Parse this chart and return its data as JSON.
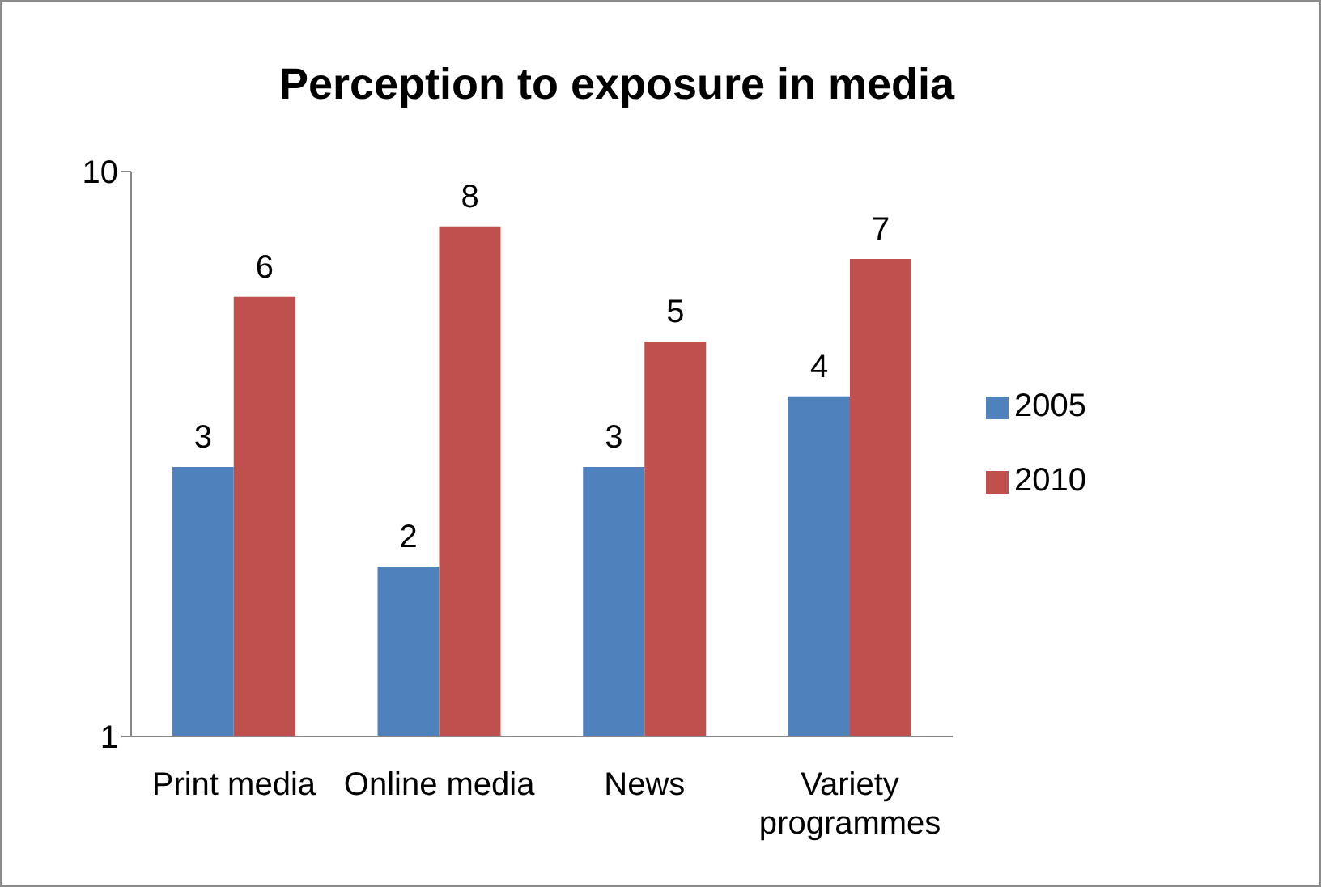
{
  "chart_data": {
    "type": "bar",
    "title": "Perception to exposure in media",
    "categories": [
      "Print media",
      "Online media",
      "News",
      "Variety programmes"
    ],
    "series": [
      {
        "name": "2005",
        "color": "#4f81bd",
        "values": [
          3,
          2,
          3,
          4
        ]
      },
      {
        "name": "2010",
        "color": "#c0504d",
        "values": [
          6,
          8,
          5,
          7
        ]
      }
    ],
    "log": "y",
    "ylim": [
      1,
      10
    ],
    "yticks": [
      1,
      10
    ],
    "legend": "right",
    "data_labels": true
  }
}
